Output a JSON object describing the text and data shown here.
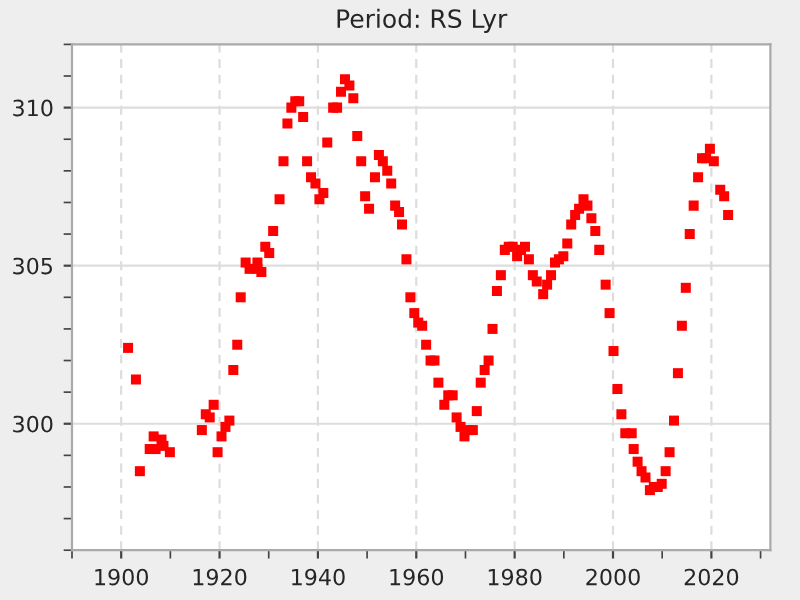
{
  "chart_data": {
    "type": "scatter",
    "title": "Period: RS Lyr",
    "x": [
      1901.4,
      1903.0,
      1903.8,
      1905.8,
      1906.6,
      1907.0,
      1908.2,
      1908.6,
      1909.9,
      1916.4,
      1917.2,
      1918.0,
      1918.8,
      1919.6,
      1920.4,
      1921.2,
      1922.0,
      1922.8,
      1923.6,
      1924.3,
      1925.3,
      1926.1,
      1927.7,
      1927.7,
      1928.5,
      1929.3,
      1930.1,
      1930.9,
      1932.2,
      1933.0,
      1933.8,
      1934.6,
      1935.4,
      1936.2,
      1937.0,
      1937.8,
      1938.6,
      1939.5,
      1940.3,
      1941.1,
      1941.9,
      1943.1,
      1943.9,
      1944.7,
      1945.5,
      1946.4,
      1947.2,
      1948.0,
      1948.8,
      1949.6,
      1950.4,
      1951.6,
      1952.4,
      1953.2,
      1954.1,
      1954.9,
      1955.7,
      1956.5,
      1957.1,
      1958.0,
      1958.8,
      1959.6,
      1960.4,
      1961.2,
      1962.0,
      1962.9,
      1963.7,
      1964.5,
      1965.7,
      1966.5,
      1967.4,
      1968.2,
      1969.0,
      1969.8,
      1970.6,
      1971.5,
      1972.3,
      1973.1,
      1973.9,
      1974.7,
      1975.5,
      1976.4,
      1977.2,
      1978.0,
      1978.8,
      1979.6,
      1980.5,
      1981.3,
      1982.1,
      1982.9,
      1983.7,
      1984.5,
      1985.8,
      1986.6,
      1987.4,
      1988.2,
      1989.0,
      1989.9,
      1990.7,
      1991.5,
      1992.3,
      1993.1,
      1994.0,
      1994.8,
      1995.6,
      1996.4,
      1997.2,
      1998.5,
      1999.3,
      2000.1,
      2000.9,
      2001.7,
      2002.5,
      2003.8,
      2004.2,
      2005.0,
      2005.8,
      2006.6,
      2007.5,
      2008.3,
      2009.1,
      2009.9,
      2010.7,
      2011.5,
      2012.4,
      2013.2,
      2014.0,
      2014.8,
      2015.6,
      2016.4,
      2017.3,
      2018.1,
      2018.9,
      2019.7,
      2020.5,
      2021.8,
      2022.6,
      2023.4
    ],
    "series": [
      {
        "color": "#ff0000",
        "values": [
          302.4,
          301.4,
          298.5,
          299.2,
          299.6,
          299.2,
          299.5,
          299.3,
          299.1,
          299.8,
          300.3,
          300.2,
          300.6,
          299.1,
          299.6,
          299.9,
          300.1,
          301.7,
          302.5,
          304.0,
          305.1,
          304.9,
          305.1,
          304.9,
          304.8,
          305.6,
          305.4,
          306.1,
          307.1,
          308.3,
          309.5,
          310.0,
          310.2,
          310.2,
          309.7,
          308.3,
          307.8,
          307.6,
          307.1,
          307.3,
          308.9,
          310.0,
          310.0,
          310.5,
          310.9,
          310.7,
          310.3,
          309.1,
          308.3,
          307.2,
          306.8,
          307.8,
          308.5,
          308.3,
          308.0,
          307.6,
          306.9,
          306.7,
          306.3,
          305.2,
          304.0,
          303.5,
          303.2,
          303.1,
          302.5,
          302.0,
          302.0,
          301.3,
          300.6,
          300.9,
          300.9,
          300.2,
          299.9,
          299.6,
          299.8,
          299.8,
          300.4,
          301.3,
          301.7,
          302.0,
          303.0,
          304.2,
          304.7,
          305.5,
          305.6,
          305.6,
          305.3,
          305.5,
          305.6,
          305.2,
          304.7,
          304.5,
          304.1,
          304.4,
          304.7,
          305.1,
          305.2,
          305.3,
          305.7,
          306.3,
          306.6,
          306.8,
          307.1,
          306.9,
          306.5,
          306.1,
          305.5,
          304.4,
          303.5,
          302.3,
          301.1,
          300.3,
          299.7,
          299.7,
          299.2,
          298.8,
          298.5,
          298.3,
          297.9,
          298.0,
          298.0,
          298.1,
          298.5,
          299.1,
          300.1,
          301.6,
          303.1,
          304.3,
          306.0,
          306.9,
          307.8,
          308.4,
          308.4,
          308.7,
          308.3,
          307.4,
          307.2,
          306.6
        ]
      }
    ],
    "marker": "square",
    "xlim": [
      1890,
      2032
    ],
    "ylim": [
      296,
      312
    ],
    "xticks": [
      {
        "value": 1890,
        "label": null
      },
      1900,
      {
        "value": 1910,
        "label": null
      },
      1920,
      {
        "value": 1930,
        "label": null
      },
      1940,
      {
        "value": 1950,
        "label": null
      },
      1960,
      {
        "value": 1970,
        "label": null
      },
      1980,
      {
        "value": 1990,
        "label": null
      },
      2000,
      {
        "value": 2010,
        "label": null
      },
      2020,
      {
        "value": 2030,
        "label": null
      }
    ],
    "yticks": [
      {
        "value": 296,
        "label": null
      },
      {
        "value": 297,
        "label": null
      },
      {
        "value": 298,
        "label": null
      },
      {
        "value": 299,
        "label": null
      },
      300,
      {
        "value": 301,
        "label": null
      },
      {
        "value": 302,
        "label": null
      },
      {
        "value": 303,
        "label": null
      },
      {
        "value": 304,
        "label": null
      },
      305,
      {
        "value": 306,
        "label": null
      },
      {
        "value": 307,
        "label": null
      },
      {
        "value": 308,
        "label": null
      },
      {
        "value": 309,
        "label": null
      },
      310,
      {
        "value": 311,
        "label": null
      },
      {
        "value": 312,
        "label": null
      }
    ],
    "grid": true
  }
}
